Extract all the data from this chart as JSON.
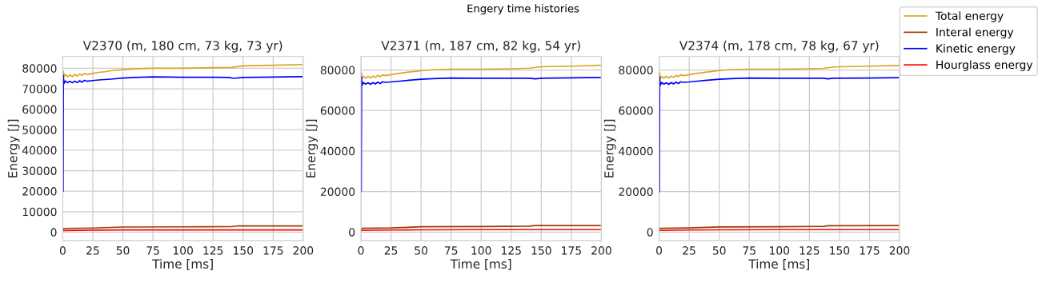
{
  "chart_data": [
    {
      "type": "line",
      "title": "V2370 (m, 180 cm, 73 kg, 73 yr)",
      "xlabel": "Time [ms]",
      "ylabel": "Energy [J]",
      "annotations": [
        "Engery time histories"
      ],
      "xlim": [
        0,
        200
      ],
      "xticks": [
        0,
        25,
        50,
        75,
        100,
        125,
        150,
        175,
        200
      ],
      "ylim": [
        -4100,
        85700
      ],
      "yticks": [
        0,
        10000,
        20000,
        30000,
        40000,
        50000,
        60000,
        70000,
        80000
      ],
      "grid": true,
      "marker": "none",
      "line_style": "solid",
      "legend": "top right",
      "series": [
        {
          "name": "Total energy",
          "color": "#daa520",
          "x": [
            0.5,
            1,
            2,
            4,
            6,
            8,
            10,
            12,
            14,
            16,
            18,
            20,
            25,
            30,
            35,
            40,
            50,
            60,
            75,
            100,
            125,
            140,
            150,
            175,
            199
          ],
          "values": [
            78500,
            76000,
            77000,
            75800,
            76800,
            75900,
            77000,
            76200,
            77200,
            76500,
            77500,
            77000,
            77500,
            78000,
            78300,
            78800,
            79300,
            79700,
            80000,
            80000,
            80300,
            80400,
            81200,
            81500,
            81800
          ]
        },
        {
          "name": "Interal energy",
          "color": "#993d00",
          "x": [
            0,
            1,
            25,
            50,
            100,
            140,
            145,
            199
          ],
          "values": [
            1200,
            1800,
            2000,
            2500,
            2600,
            2700,
            3000,
            3000
          ]
        },
        {
          "name": "Kinetic energy",
          "color": "#0000ff",
          "x": [
            0.3,
            0.5,
            1,
            2,
            4,
            6,
            8,
            10,
            12,
            14,
            16,
            18,
            20,
            25,
            30,
            40,
            50,
            60,
            75,
            100,
            125,
            138,
            142,
            150,
            175,
            199
          ],
          "values": [
            20000,
            76500,
            72500,
            73800,
            73000,
            73600,
            72900,
            73700,
            73000,
            73900,
            73200,
            74100,
            73700,
            74000,
            74300,
            74700,
            75200,
            75500,
            75800,
            75600,
            75600,
            75500,
            75100,
            75500,
            75700,
            75900
          ]
        },
        {
          "name": "Hourglass energy",
          "color": "#ff0000",
          "x": [
            0,
            1,
            25,
            50,
            100,
            199
          ],
          "values": [
            700,
            800,
            1000,
            1100,
            1100,
            1100
          ]
        }
      ]
    },
    {
      "type": "line",
      "title": "V2371 (m, 187 cm, 82 kg, 54 yr)",
      "xlabel": "Time [ms]",
      "ylabel": "Energy [J]",
      "xlim": [
        0,
        200
      ],
      "xticks": [
        0,
        25,
        50,
        75,
        100,
        125,
        150,
        175,
        200
      ],
      "ylim": [
        -4200,
        86600
      ],
      "yticks": [
        0,
        20000,
        40000,
        60000,
        80000
      ],
      "grid": true,
      "marker": "none",
      "line_style": "solid",
      "series": [
        {
          "color": "#daa520",
          "x": [
            0.5,
            1,
            2,
            4,
            6,
            8,
            10,
            12,
            14,
            16,
            18,
            20,
            25,
            30,
            35,
            40,
            50,
            60,
            75,
            100,
            125,
            140,
            150,
            175,
            199
          ],
          "values": [
            78500,
            75800,
            76800,
            75900,
            76900,
            76000,
            77000,
            76300,
            77300,
            76700,
            77600,
            77200,
            77700,
            78200,
            78600,
            79000,
            79600,
            80100,
            80400,
            80400,
            80600,
            80900,
            81600,
            81900,
            82300
          ]
        },
        {
          "color": "#993d00",
          "x": [
            0,
            1,
            25,
            50,
            100,
            140,
            145,
            199
          ],
          "values": [
            1200,
            1800,
            2000,
            2600,
            2700,
            2900,
            3200,
            3200
          ]
        },
        {
          "color": "#0000ff",
          "x": [
            0.3,
            0.5,
            1,
            2,
            4,
            6,
            8,
            10,
            12,
            14,
            16,
            18,
            20,
            25,
            30,
            40,
            50,
            60,
            75,
            100,
            125,
            140,
            145,
            150,
            175,
            199
          ],
          "values": [
            20000,
            76500,
            72500,
            73800,
            73000,
            73700,
            72900,
            73800,
            73100,
            74000,
            73300,
            74200,
            73900,
            74100,
            74400,
            74900,
            75400,
            75700,
            76000,
            75900,
            75900,
            75900,
            75600,
            75900,
            76100,
            76300
          ]
        },
        {
          "color": "#ff0000",
          "x": [
            0,
            1,
            25,
            50,
            100,
            199
          ],
          "values": [
            700,
            800,
            1000,
            1100,
            1200,
            1200
          ]
        }
      ]
    },
    {
      "type": "line",
      "title": "V2374 (m, 178 cm, 78 kg, 67 yr)",
      "xlabel": "Time [ms]",
      "ylabel": "Energy [J]",
      "xlim": [
        0,
        200
      ],
      "xticks": [
        0,
        25,
        50,
        75,
        100,
        125,
        150,
        175,
        200
      ],
      "ylim": [
        -4200,
        86600
      ],
      "yticks": [
        0,
        20000,
        40000,
        60000,
        80000
      ],
      "grid": true,
      "marker": "none",
      "line_style": "solid",
      "series": [
        {
          "color": "#daa520",
          "x": [
            0.5,
            1,
            2,
            4,
            6,
            8,
            10,
            12,
            14,
            16,
            18,
            20,
            25,
            30,
            35,
            40,
            50,
            60,
            75,
            100,
            125,
            137,
            145,
            175,
            199
          ],
          "values": [
            78500,
            75800,
            76800,
            75900,
            76900,
            76000,
            77000,
            76300,
            77300,
            76700,
            77600,
            77200,
            77700,
            78200,
            78600,
            79000,
            79700,
            80200,
            80400,
            80400,
            80600,
            80800,
            81500,
            81900,
            82200
          ]
        },
        {
          "color": "#993d00",
          "x": [
            0,
            1,
            25,
            50,
            100,
            137,
            140,
            199
          ],
          "values": [
            1200,
            1800,
            2000,
            2500,
            2600,
            2800,
            3100,
            3200
          ]
        },
        {
          "color": "#0000ff",
          "x": [
            0.3,
            0.5,
            1,
            2,
            4,
            6,
            8,
            10,
            12,
            14,
            16,
            18,
            20,
            25,
            30,
            40,
            50,
            60,
            75,
            100,
            125,
            137,
            140,
            145,
            175,
            199
          ],
          "values": [
            20000,
            76500,
            72500,
            73800,
            73000,
            73700,
            72900,
            73800,
            73100,
            74000,
            73300,
            74200,
            73900,
            74100,
            74400,
            74900,
            75400,
            75700,
            76000,
            75900,
            75900,
            75900,
            75600,
            75900,
            76000,
            76200
          ]
        },
        {
          "color": "#ff0000",
          "x": [
            0,
            1,
            25,
            50,
            100,
            199
          ],
          "values": [
            700,
            800,
            1000,
            1100,
            1200,
            1200
          ]
        }
      ]
    }
  ]
}
